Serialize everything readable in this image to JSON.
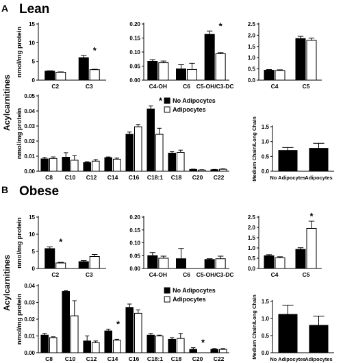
{
  "panels": [
    {
      "letter": "A",
      "title": "Lean"
    },
    {
      "letter": "B",
      "title": "Obese"
    }
  ],
  "labels": {
    "side_label": "Acylcarnitines",
    "unit_label": "nmol/mg protein",
    "ratio_label": "Medium Chain/Long Chain",
    "legend_no": "No Adipocytes",
    "legend_yes": "Adipocytes"
  },
  "colors": {
    "no_adipocytes": "#000000",
    "adipocytes": "#ffffff"
  },
  "chart_data": [
    {
      "panel": "A",
      "type": "bar",
      "ylabel": "nmol/mg protein",
      "ylim": [
        0,
        15
      ],
      "yticks": [
        0,
        5,
        10,
        15
      ],
      "categories": [
        "C2",
        "C3"
      ],
      "series": [
        {
          "name": "No Adipocytes",
          "values": [
            2.4,
            6.0
          ],
          "errors": [
            0.1,
            0.6
          ]
        },
        {
          "name": "Adipocytes",
          "values": [
            2.1,
            2.8
          ],
          "errors": [
            0.1,
            0.1
          ]
        }
      ],
      "significance": [
        {
          "category": "C3",
          "label": "*"
        }
      ]
    },
    {
      "panel": "A",
      "type": "bar",
      "ylim": [
        0,
        0.2
      ],
      "yticks": [
        0.0,
        0.05,
        0.1,
        0.15,
        0.2
      ],
      "categories": [
        "C4-OH",
        "C6",
        "C5-OH/C3-DC"
      ],
      "series": [
        {
          "name": "No Adipocytes",
          "values": [
            0.067,
            0.04,
            0.163
          ],
          "errors": [
            0.006,
            0.015,
            0.012
          ]
        },
        {
          "name": "Adipocytes",
          "values": [
            0.062,
            0.038,
            0.094
          ],
          "errors": [
            0.006,
            0.022,
            0.004
          ]
        }
      ],
      "significance": [
        {
          "category": "C5-OH/C3-DC",
          "label": "*"
        }
      ]
    },
    {
      "panel": "A",
      "type": "bar",
      "ylim": [
        0,
        2.5
      ],
      "yticks": [
        0.0,
        0.5,
        1.0,
        1.5,
        2.0,
        2.5
      ],
      "categories": [
        "C4",
        "C5"
      ],
      "series": [
        {
          "name": "No Adipocytes",
          "values": [
            0.44,
            1.85
          ],
          "errors": [
            0.03,
            0.1
          ]
        },
        {
          "name": "Adipocytes",
          "values": [
            0.43,
            1.77
          ],
          "errors": [
            0.03,
            0.1
          ]
        }
      ],
      "significance": []
    },
    {
      "panel": "A",
      "type": "bar",
      "ylabel": "nmol/mg protein",
      "ylim": [
        0,
        0.05
      ],
      "yticks": [
        0.0,
        0.01,
        0.02,
        0.03,
        0.04,
        0.05
      ],
      "legend": "top-right",
      "categories": [
        "C8",
        "C10",
        "C12",
        "C14",
        "C16",
        "C18:1",
        "C18",
        "C20",
        "C22"
      ],
      "series": [
        {
          "name": "No Adipocytes",
          "values": [
            0.0082,
            0.0093,
            0.0058,
            0.009,
            0.0245,
            0.0413,
            0.012,
            0.0012,
            0.001
          ],
          "errors": [
            0.001,
            0.003,
            0.0005,
            0.0005,
            0.0015,
            0.002,
            0.001,
            0.0002,
            0.0002
          ]
        },
        {
          "name": "Adipocytes",
          "values": [
            0.0085,
            0.0073,
            0.0067,
            0.008,
            0.0295,
            0.0245,
            0.0125,
            0.0008,
            0.0013
          ],
          "errors": [
            0.001,
            0.003,
            0.001,
            0.0007,
            0.0015,
            0.004,
            0.0015,
            0.0002,
            0.0003
          ]
        }
      ],
      "significance": [
        {
          "category": "C18:1",
          "label": "*"
        }
      ]
    },
    {
      "panel": "A",
      "type": "bar",
      "ylabel": "Medium Chain/Long Chain",
      "ylim": [
        0,
        1.5
      ],
      "yticks": [
        0.0,
        0.5,
        1.0,
        1.5
      ],
      "categories": [
        "No Adipocytes",
        "Adipocytes"
      ],
      "series": [
        {
          "name": "Ratio",
          "values": [
            0.7,
            0.77
          ],
          "errors": [
            0.1,
            0.17
          ]
        }
      ],
      "significance": []
    },
    {
      "panel": "B",
      "type": "bar",
      "ylabel": "nmol/mg protein",
      "ylim": [
        0,
        15
      ],
      "yticks": [
        0,
        5,
        10,
        15
      ],
      "categories": [
        "C2",
        "C3"
      ],
      "series": [
        {
          "name": "No Adipocytes",
          "values": [
            5.8,
            2.0
          ],
          "errors": [
            0.5,
            0.3
          ]
        },
        {
          "name": "Adipocytes",
          "values": [
            1.6,
            3.5
          ],
          "errors": [
            0.2,
            0.6
          ]
        }
      ],
      "significance": [
        {
          "category": "C2",
          "label": "*"
        }
      ]
    },
    {
      "panel": "B",
      "type": "bar",
      "ylim": [
        0,
        0.2
      ],
      "yticks": [
        0.0,
        0.05,
        0.1,
        0.15,
        0.2
      ],
      "categories": [
        "C4-OH",
        "C6",
        "C5-OH/C3-DC"
      ],
      "series": [
        {
          "name": "No Adipocytes",
          "values": [
            0.05,
            0.038,
            0.035
          ],
          "errors": [
            0.012,
            0.04,
            0.003
          ]
        },
        {
          "name": "Adipocytes",
          "values": [
            0.04,
            0.0,
            0.038
          ],
          "errors": [
            0.008,
            0.0,
            0.01
          ]
        }
      ],
      "significance": []
    },
    {
      "panel": "B",
      "type": "bar",
      "ylim": [
        0,
        2.5
      ],
      "yticks": [
        0.0,
        0.5,
        1.0,
        1.5,
        2.0,
        2.5
      ],
      "categories": [
        "C4",
        "C5"
      ],
      "series": [
        {
          "name": "No Adipocytes",
          "values": [
            0.62,
            0.93
          ],
          "errors": [
            0.05,
            0.08
          ]
        },
        {
          "name": "Adipocytes",
          "values": [
            0.52,
            1.95
          ],
          "errors": [
            0.05,
            0.35
          ]
        }
      ],
      "significance": [
        {
          "category": "C5",
          "label": "*"
        }
      ]
    },
    {
      "panel": "B",
      "type": "bar",
      "ylabel": "nmol/mg protein",
      "ylim": [
        0,
        0.04
      ],
      "yticks": [
        0.0,
        0.01,
        0.02,
        0.03,
        0.04
      ],
      "legend": "top-right",
      "categories": [
        "C8",
        "C10",
        "C12",
        "C14",
        "C16",
        "C18:1",
        "C18",
        "C20",
        "C22"
      ],
      "series": [
        {
          "name": "No Adipocytes",
          "values": [
            0.0105,
            0.0365,
            0.007,
            0.013,
            0.027,
            0.0105,
            0.008,
            0.002,
            0.002
          ],
          "errors": [
            0.001,
            0.0005,
            0.003,
            0.001,
            0.002,
            0.001,
            0.001,
            0.001,
            0.0005
          ]
        },
        {
          "name": "Adipocytes",
          "values": [
            0.009,
            0.022,
            0.006,
            0.0075,
            0.0235,
            0.01,
            0.0085,
            0.0,
            0.002
          ],
          "errors": [
            0.0005,
            0.009,
            0.001,
            0.0005,
            0.002,
            0.0005,
            0.003,
            0.0,
            0.0005
          ]
        }
      ],
      "significance": [
        {
          "category": "C14",
          "label": "*"
        },
        {
          "category": "C20",
          "label": "*"
        }
      ]
    },
    {
      "panel": "B",
      "type": "bar",
      "ylabel": "Medium Chain/Long Chain",
      "ylim": [
        0,
        1.5
      ],
      "yticks": [
        0.0,
        0.5,
        1.0,
        1.5
      ],
      "categories": [
        "No Adipocytes",
        "Adipocytes"
      ],
      "series": [
        {
          "name": "Ratio",
          "values": [
            1.12,
            0.8
          ],
          "errors": [
            0.27,
            0.27
          ]
        }
      ],
      "significance": []
    }
  ]
}
